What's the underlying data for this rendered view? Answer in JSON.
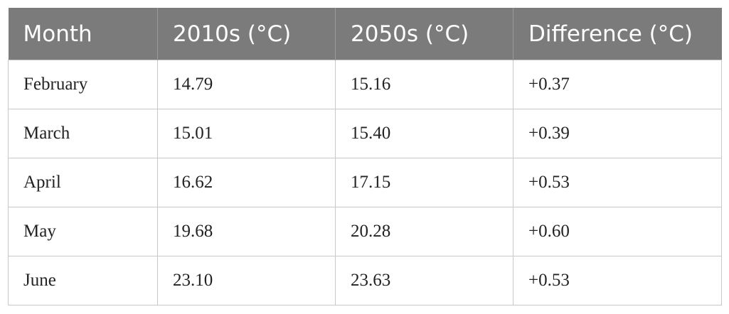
{
  "table": {
    "header": [
      "Month",
      "2010s (°C)",
      "2050s (°C)",
      "Difference (°C)"
    ],
    "rows": [
      [
        "February",
        "14.79",
        "15.16",
        "+0.37"
      ],
      [
        "March",
        "15.01",
        "15.40",
        "+0.39"
      ],
      [
        "April",
        "16.62",
        "17.15",
        "+0.53"
      ],
      [
        "May",
        "19.68",
        "20.28",
        "+0.60"
      ],
      [
        "June",
        "23.10",
        "23.63",
        "+0.53"
      ]
    ]
  }
}
